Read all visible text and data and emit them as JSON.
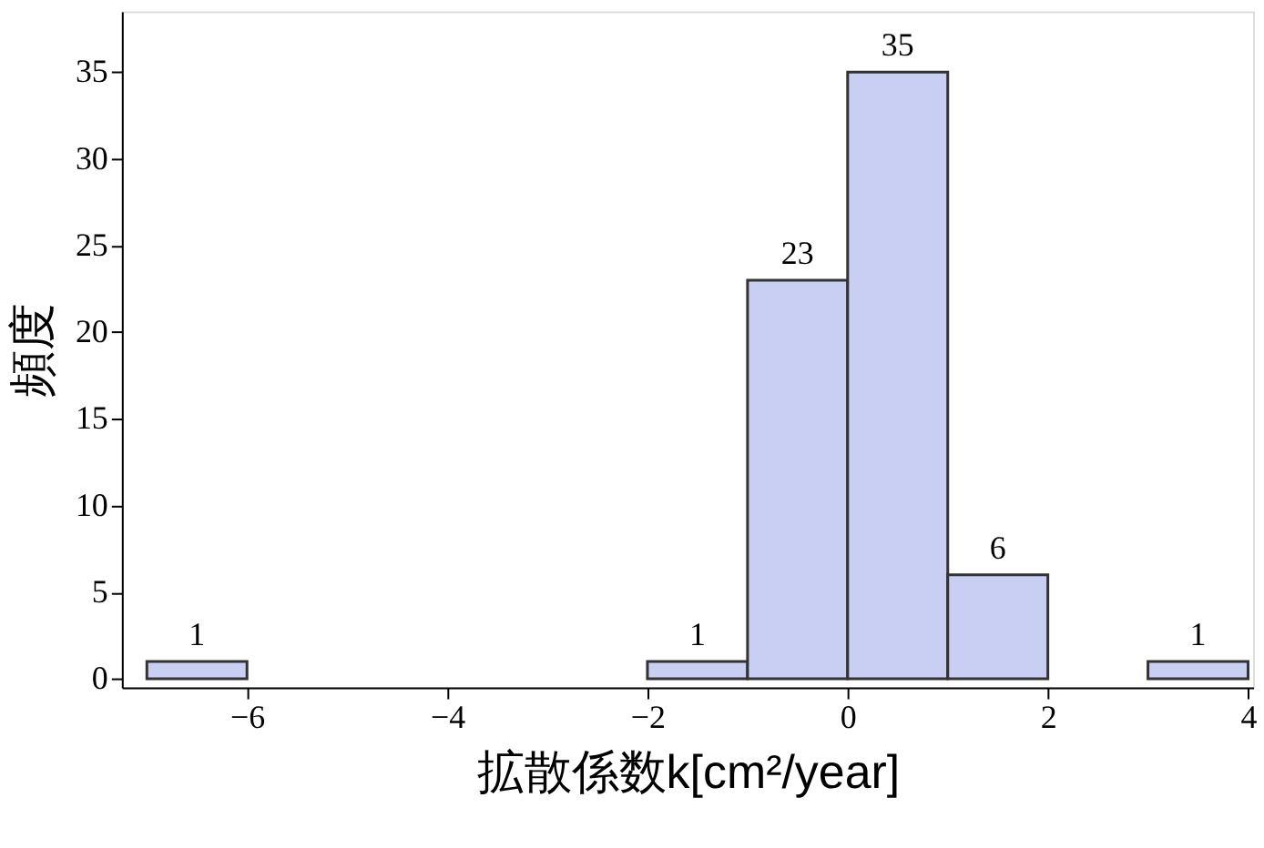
{
  "chart_data": {
    "type": "histogram",
    "bins": [
      -7,
      -6,
      -5,
      -4,
      -3,
      -2,
      -1,
      0,
      1,
      2,
      3,
      4
    ],
    "values": [
      1,
      0,
      0,
      0,
      0,
      1,
      23,
      35,
      6,
      0,
      1
    ],
    "value_labels": [
      "1",
      null,
      null,
      null,
      null,
      "1",
      "23",
      "35",
      "6",
      null,
      "1"
    ],
    "color": "#c8cff2",
    "xlabel": "拡散係数k[cm²/year]",
    "ylabel": "頻度",
    "xlim": [
      -7.25,
      4.05
    ],
    "ylim": [
      -0.5,
      38.5
    ],
    "xticks": [
      {
        "value": -6,
        "label": "−6"
      },
      {
        "value": -4,
        "label": "−4"
      },
      {
        "value": -2,
        "label": "−2"
      },
      0,
      2,
      4
    ],
    "yticks": [
      0,
      5,
      10,
      15,
      20,
      25,
      30,
      35
    ],
    "grid": false
  }
}
